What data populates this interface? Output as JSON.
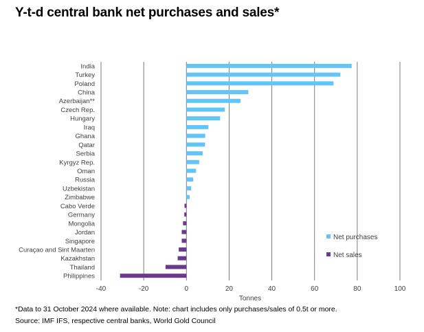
{
  "title": "Y-t-d central bank net purchases and sales*",
  "footnote": "*Data to 31 October 2024 where available. Note: chart includes only purchases/sales of 0.5t or more.",
  "source": "Source: IMF IFS, respective central banks, World Gold Council",
  "colors": {
    "purchases": "#63c5f5",
    "sales": "#6b3a8c",
    "grid": "#7a7a7a",
    "axis_text": "#404040"
  },
  "chart_data": {
    "type": "bar",
    "orientation": "horizontal",
    "title": "Y-t-d central bank net purchases and sales*",
    "xlabel": "Tonnes",
    "ylabel": "",
    "xlim": [
      -40,
      100
    ],
    "xticks": [
      -40,
      -20,
      0,
      20,
      40,
      60,
      80,
      100
    ],
    "grid": true,
    "legend_position": "right",
    "categories": [
      "India",
      "Turkey",
      "Poland",
      "China",
      "Azerbaijan**",
      "Czech Rep.",
      "Hungary",
      "Iraq",
      "Ghana",
      "Qatar",
      "Serbia",
      "Kyrgyz Rep.",
      "Oman",
      "Russia",
      "Uzbekistan",
      "Zimbabwe",
      "Cabo Verde",
      "Germany",
      "Mongolia",
      "Jordan",
      "Singapore",
      "Curaçao and Sint Maarten",
      "Kazakhstan",
      "Thailand",
      "Philippines"
    ],
    "values": [
      77.4,
      72.1,
      68.9,
      29.0,
      25.3,
      18.0,
      15.8,
      10.3,
      8.8,
      8.7,
      7.6,
      6.0,
      4.5,
      3.2,
      2.2,
      1.5,
      -0.9,
      -1.0,
      -1.6,
      -2.2,
      -2.2,
      -3.6,
      -4.1,
      -9.8,
      -31.1
    ],
    "series": [
      {
        "name": "Net purchases",
        "color": "#63c5f5"
      },
      {
        "name": "Net sales",
        "color": "#6b3a8c"
      }
    ]
  }
}
